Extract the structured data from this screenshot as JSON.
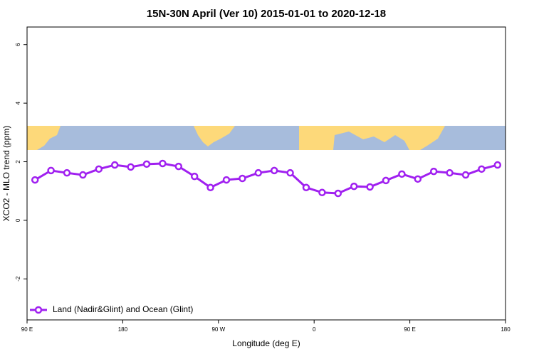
{
  "chart_data": {
    "type": "line",
    "title": "15N-30N April (Ver 10)   2015-01-01 to 2020-12-18",
    "x_label": "Longitude (deg E)",
    "y_label": "XCO2 - MLO trend (ppm)",
    "x": [
      97.5,
      112.5,
      127.5,
      142.5,
      157.5,
      172.5,
      187.5,
      202.5,
      217.5,
      232.5,
      247.5,
      262.5,
      277.5,
      292.5,
      307.5,
      322.5,
      337.5,
      352.5,
      367.5,
      382.5,
      397.5,
      412.5,
      427.5,
      442.5,
      457.5,
      472.5,
      487.5,
      502.5,
      517.5,
      532.5
    ],
    "series": [
      {
        "name": "Land (Nadir&Glint) and Ocean (Glint)",
        "color": "#a020f0",
        "values": [
          1.38,
          1.7,
          1.62,
          1.55,
          1.75,
          1.89,
          1.82,
          1.92,
          1.94,
          1.84,
          1.5,
          1.12,
          1.38,
          1.43,
          1.62,
          1.7,
          1.62,
          1.12,
          0.95,
          0.92,
          1.16,
          1.14,
          1.36,
          1.58,
          1.41,
          1.67,
          1.62,
          1.55,
          1.75,
          1.89
        ]
      }
    ],
    "xlim": [
      90,
      540
    ],
    "xticks": [
      {
        "value": 90,
        "label": "90 E"
      },
      {
        "value": 180,
        "label": "180"
      },
      {
        "value": 270,
        "label": "90 W"
      },
      {
        "value": 360,
        "label": "0"
      },
      {
        "value": 450,
        "label": "90 E"
      },
      {
        "value": 540,
        "label": "180"
      }
    ],
    "ylim": [
      -3.4,
      6.6
    ],
    "yticks": [
      -2,
      0,
      2,
      4,
      6
    ],
    "legend": "bottom-left"
  }
}
